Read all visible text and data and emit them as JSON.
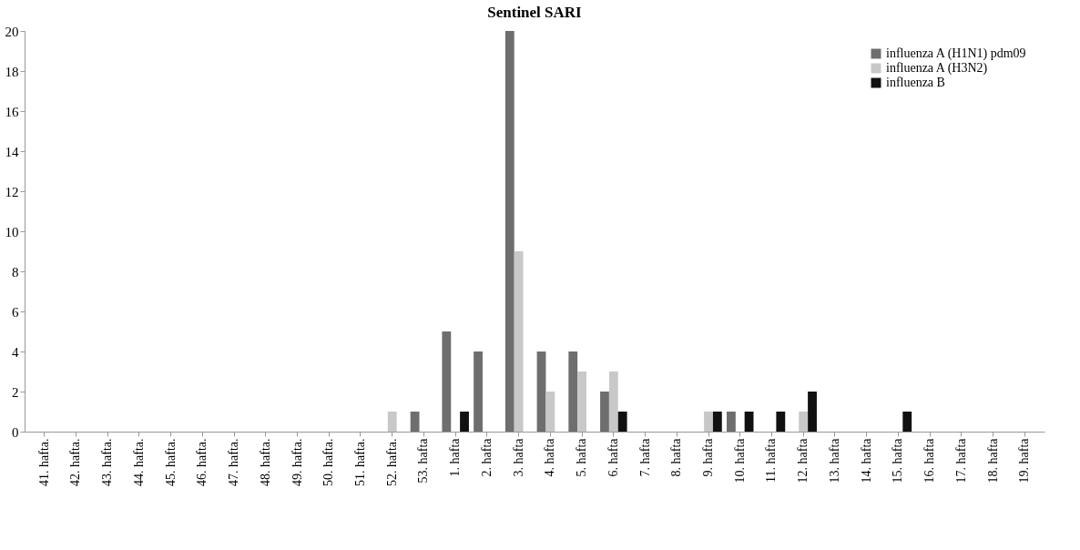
{
  "chart_data": {
    "type": "bar",
    "title": "Sentinel SARI",
    "categories": [
      "41. hafta.",
      "42. hafta.",
      "43. hafta.",
      "44. hafta.",
      "45. hafta.",
      "46. hafta.",
      "47. hafta.",
      "48. hafta.",
      "49. hafta.",
      "50. hafta.",
      "51. hafta.",
      "52. hafta.",
      "53. hafta",
      "1. hafta",
      "2. hafta",
      "3. hafta",
      "4. hafta",
      "5. hafta",
      "6. hafta",
      "7. hafta",
      "8. hafta",
      "9. hafta",
      "10. hafta",
      "11. hafta",
      "12. hafta",
      "13. hafta",
      "14. hafta",
      "15. hafta",
      "16. hafta",
      "17. hafta",
      "18. hafta",
      "19. hafta"
    ],
    "series": [
      {
        "name": "influenza A (H1N1) pdm09",
        "color": "#6e6e6e",
        "values": [
          0,
          0,
          0,
          0,
          0,
          0,
          0,
          0,
          0,
          0,
          0,
          0,
          1,
          5,
          4,
          20,
          4,
          4,
          2,
          0,
          0,
          0,
          1,
          0,
          0,
          0,
          0,
          0,
          0,
          0,
          0,
          0
        ]
      },
      {
        "name": "influenza A (H3N2)",
        "color": "#c8c8c8",
        "values": [
          0,
          0,
          0,
          0,
          0,
          0,
          0,
          0,
          0,
          0,
          0,
          1,
          0,
          0,
          0,
          9,
          2,
          3,
          3,
          0,
          0,
          1,
          0,
          0,
          1,
          0,
          0,
          0,
          0,
          0,
          0,
          0
        ]
      },
      {
        "name": "influenza B",
        "color": "#111111",
        "values": [
          0,
          0,
          0,
          0,
          0,
          0,
          0,
          0,
          0,
          0,
          0,
          0,
          0,
          1,
          0,
          0,
          0,
          0,
          1,
          0,
          0,
          1,
          1,
          1,
          2,
          0,
          0,
          1,
          0,
          0,
          0,
          0
        ]
      }
    ],
    "ylim": [
      0,
      20
    ],
    "yticks": [
      0,
      2,
      4,
      6,
      8,
      10,
      12,
      14,
      16,
      18,
      20
    ],
    "grid": false,
    "legend": "top right"
  }
}
